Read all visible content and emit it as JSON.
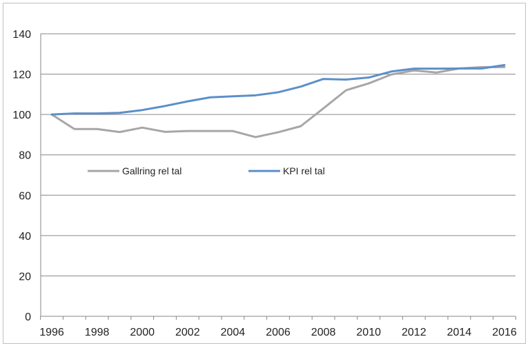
{
  "chart_data": {
    "type": "line",
    "title": "",
    "xlabel": "",
    "ylabel": "",
    "x": [
      1996,
      1997,
      1998,
      1999,
      2000,
      2001,
      2002,
      2003,
      2004,
      2005,
      2006,
      2007,
      2008,
      2009,
      2010,
      2011,
      2012,
      2013,
      2014,
      2015,
      2016
    ],
    "x_ticks": [
      "1996",
      "1998",
      "2000",
      "2002",
      "2004",
      "2006",
      "2008",
      "2010",
      "2012",
      "2014",
      "2016"
    ],
    "y_ticks": [
      "0",
      "20",
      "40",
      "60",
      "80",
      "100",
      "120",
      "140"
    ],
    "ylim": [
      0,
      140
    ],
    "xlim": [
      1996,
      2016
    ],
    "grid": true,
    "legend_position": "center-left",
    "series": [
      {
        "name": "Gallring rel tal",
        "color": "#a6a6a6",
        "values": [
          100,
          92.8,
          92.8,
          91.3,
          93.5,
          91.4,
          91.8,
          91.8,
          91.8,
          88.8,
          91.2,
          94.2,
          103,
          112,
          115.4,
          119.8,
          121.8,
          120.8,
          122.8,
          123.5,
          123.5
        ]
      },
      {
        "name": "KPI rel tal",
        "color": "#5b8fc9",
        "values": [
          100,
          100.5,
          100.5,
          100.8,
          102.2,
          104.2,
          106.5,
          108.5,
          109,
          109.5,
          111,
          113.8,
          117.6,
          117.3,
          118.3,
          121.3,
          122.7,
          122.7,
          122.8,
          122.8,
          124.5
        ]
      }
    ]
  }
}
